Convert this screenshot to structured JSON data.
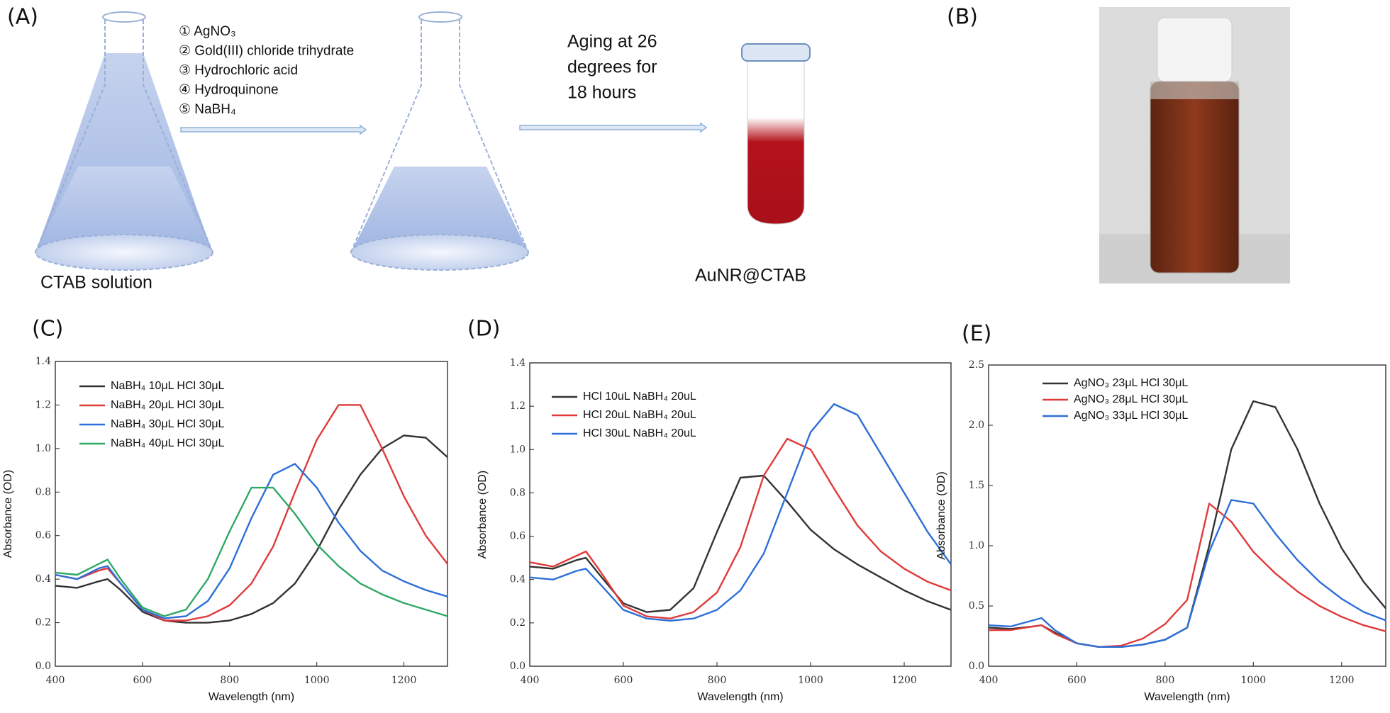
{
  "panel_a": {
    "label": "(A)",
    "reagents": [
      "① AgNO₃",
      "② Gold(III) chloride trihydrate",
      "③ Hydrochloric acid",
      "④ Hydroquinone",
      "⑤ NaBH₄"
    ],
    "aging": [
      "Aging at 26",
      "degrees for",
      "18 hours"
    ],
    "start_label": "CTAB solution",
    "product_label": "AuNR@CTAB"
  },
  "panel_b": {
    "label": "(B)"
  },
  "chart_data": [
    {
      "type": "line",
      "label": "(C)",
      "x_label": "Wavelength (nm)",
      "y_label": "Absorbance (OD)",
      "x": [
        400,
        450,
        500,
        520,
        550,
        600,
        650,
        700,
        750,
        800,
        850,
        900,
        950,
        1000,
        1050,
        1100,
        1150,
        1200,
        1250,
        1300
      ],
      "xlim": [
        400,
        1300
      ],
      "xticks": [
        400,
        600,
        800,
        1000,
        1200
      ],
      "ylim": [
        0,
        1.4
      ],
      "yticks": [
        {
          "value": 0,
          "label": "0.0"
        },
        0.2,
        0.4,
        0.6,
        0.8,
        {
          "value": 1,
          "label": "1.0"
        },
        1.2,
        1.4
      ],
      "series": [
        {
          "name": "NaBH₄ 10μL HCl 30μL",
          "color": "#333333",
          "values": [
            0.37,
            0.36,
            0.39,
            0.4,
            0.35,
            0.25,
            0.21,
            0.2,
            0.2,
            0.21,
            0.24,
            0.29,
            0.38,
            0.53,
            0.72,
            0.88,
            1.0,
            1.06,
            1.05,
            0.96
          ]
        },
        {
          "name": "NaBH₄ 20μL HCl 30μL",
          "color": "#e03a3a",
          "values": [
            0.42,
            0.4,
            0.44,
            0.45,
            0.38,
            0.26,
            0.21,
            0.21,
            0.23,
            0.28,
            0.38,
            0.55,
            0.8,
            1.04,
            1.2,
            1.2,
            1.0,
            0.78,
            0.6,
            0.47
          ]
        },
        {
          "name": "NaBH₄ 30μL HCl 30μL",
          "color": "#2d6fd8",
          "values": [
            0.42,
            0.4,
            0.45,
            0.46,
            0.38,
            0.26,
            0.22,
            0.23,
            0.3,
            0.45,
            0.68,
            0.88,
            0.93,
            0.82,
            0.66,
            0.53,
            0.44,
            0.39,
            0.35,
            0.32
          ]
        },
        {
          "name": "NaBH₄ 40μL HCl 30μL",
          "color": "#2fa866",
          "values": [
            0.43,
            0.42,
            0.47,
            0.49,
            0.4,
            0.27,
            0.23,
            0.26,
            0.4,
            0.62,
            0.82,
            0.82,
            0.7,
            0.56,
            0.46,
            0.38,
            0.33,
            0.29,
            0.26,
            0.23
          ]
        }
      ]
    },
    {
      "type": "line",
      "label": "(D)",
      "x_label": "Wavelength (nm)",
      "y_label": "Absorbance (OD)",
      "x": [
        400,
        450,
        500,
        520,
        550,
        600,
        650,
        700,
        750,
        800,
        850,
        900,
        950,
        1000,
        1050,
        1100,
        1150,
        1200,
        1250,
        1300
      ],
      "xlim": [
        400,
        1300
      ],
      "xticks": [
        400,
        600,
        800,
        1000,
        1200
      ],
      "ylim": [
        0,
        1.4
      ],
      "yticks": [
        {
          "value": 0,
          "label": "0.0"
        },
        0.2,
        0.4,
        0.6,
        0.8,
        {
          "value": 1,
          "label": "1.0"
        },
        1.2,
        1.4
      ],
      "series": [
        {
          "name": "HCl 10uL NaBH₄ 20uL",
          "color": "#333333",
          "values": [
            0.46,
            0.45,
            0.49,
            0.5,
            0.42,
            0.29,
            0.25,
            0.26,
            0.36,
            0.62,
            0.87,
            0.88,
            0.76,
            0.63,
            0.54,
            0.47,
            0.41,
            0.35,
            0.3,
            0.26
          ]
        },
        {
          "name": "HCl 20uL NaBH₄ 20uL",
          "color": "#e03a3a",
          "values": [
            0.48,
            0.46,
            0.51,
            0.53,
            0.44,
            0.28,
            0.23,
            0.22,
            0.25,
            0.34,
            0.55,
            0.88,
            1.05,
            1.0,
            0.82,
            0.65,
            0.53,
            0.45,
            0.39,
            0.35
          ]
        },
        {
          "name": "HCl 30uL NaBH₄ 20uL",
          "color": "#2d6fd8",
          "values": [
            0.41,
            0.4,
            0.44,
            0.45,
            0.38,
            0.26,
            0.22,
            0.21,
            0.22,
            0.26,
            0.35,
            0.52,
            0.8,
            1.08,
            1.21,
            1.16,
            0.98,
            0.8,
            0.62,
            0.47
          ]
        }
      ]
    },
    {
      "type": "line",
      "label": "(E)",
      "x_label": "Wavelength (nm)",
      "y_label": "Absorbance (OD)",
      "x": [
        400,
        450,
        500,
        520,
        550,
        600,
        650,
        700,
        750,
        800,
        850,
        900,
        950,
        1000,
        1050,
        1100,
        1150,
        1200,
        1250,
        1300
      ],
      "xlim": [
        400,
        1300
      ],
      "xticks": [
        400,
        600,
        800,
        1000,
        1200
      ],
      "ylim": [
        0,
        2.5
      ],
      "yticks": [
        {
          "value": 0,
          "label": "0.0"
        },
        0.5,
        {
          "value": 1,
          "label": "1.0"
        },
        1.5,
        {
          "value": 2,
          "label": "2.0"
        },
        2.5
      ],
      "series": [
        {
          "name": "AgNO₃ 23μL HCl 30μL",
          "color": "#333333",
          "values": [
            0.32,
            0.31,
            0.33,
            0.34,
            0.28,
            0.19,
            0.16,
            0.16,
            0.18,
            0.22,
            0.32,
            1.0,
            1.8,
            2.2,
            2.15,
            1.8,
            1.35,
            0.98,
            0.7,
            0.48
          ]
        },
        {
          "name": "AgNO₃ 28μL HCl 30μL",
          "color": "#e03a3a",
          "values": [
            0.3,
            0.3,
            0.33,
            0.34,
            0.27,
            0.19,
            0.16,
            0.17,
            0.23,
            0.35,
            0.55,
            1.35,
            1.2,
            0.95,
            0.77,
            0.62,
            0.5,
            0.41,
            0.34,
            0.29
          ]
        },
        {
          "name": "AgNO₃ 33μL HCl 30μL",
          "color": "#2d6fd8",
          "values": [
            0.34,
            0.33,
            0.38,
            0.4,
            0.3,
            0.19,
            0.16,
            0.16,
            0.18,
            0.22,
            0.32,
            0.95,
            1.38,
            1.35,
            1.1,
            0.88,
            0.7,
            0.56,
            0.45,
            0.38
          ]
        }
      ]
    }
  ]
}
